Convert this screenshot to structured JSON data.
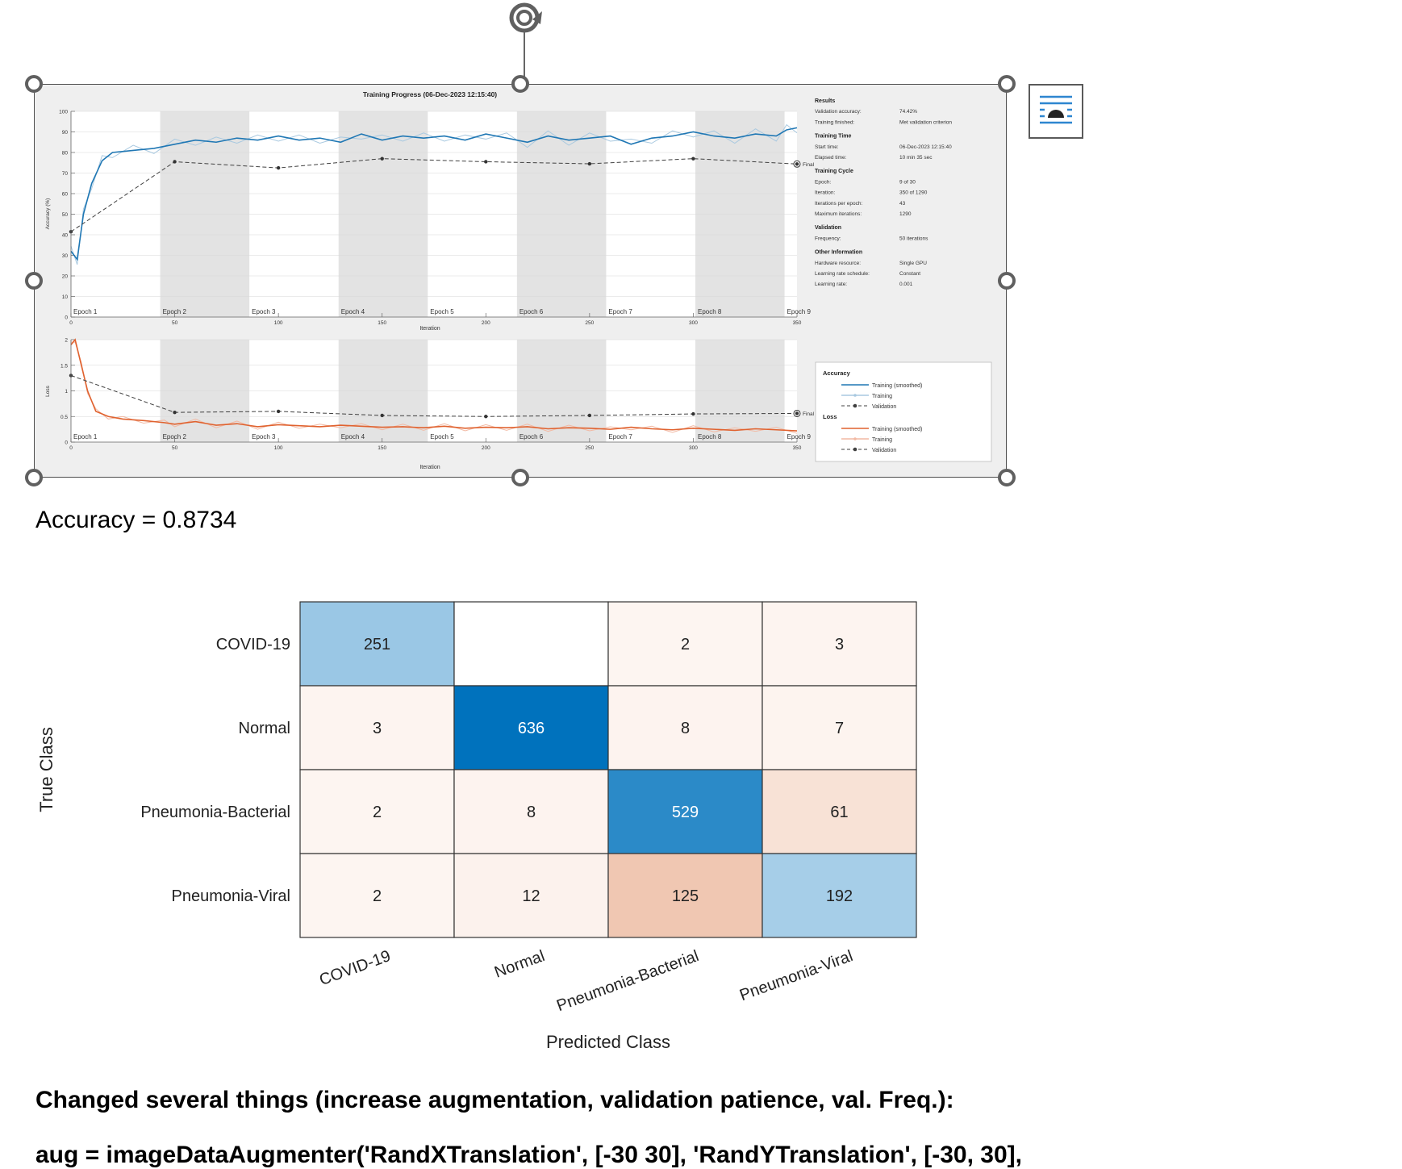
{
  "training_progress": {
    "title": "Training Progress (06-Dec-2023 12:15:40)",
    "accuracy_ylabel": "Accuracy (%)",
    "loss_ylabel": "Loss",
    "xlabel": "Iteration",
    "final_label": "Final",
    "epochs": [
      "Epoch 1",
      "Epoch 2",
      "Epoch 3",
      "Epoch 4",
      "Epoch 5",
      "Epoch 6",
      "Epoch 7",
      "Epoch 8",
      "Epoch 9"
    ],
    "accuracy_yticks": [
      "0",
      "10",
      "20",
      "30",
      "40",
      "50",
      "60",
      "70",
      "80",
      "90",
      "100"
    ],
    "loss_yticks": [
      "0",
      "0.5",
      "1",
      "1.5",
      "2"
    ],
    "xticks": [
      "0",
      "50",
      "100",
      "150",
      "200",
      "250",
      "300",
      "350"
    ],
    "results_panel": [
      {
        "kind": "header",
        "label": "Results"
      },
      {
        "kind": "row",
        "label": "Validation accuracy:",
        "value": "74.42%"
      },
      {
        "kind": "row",
        "label": "Training finished:",
        "value": "Met validation criterion"
      },
      {
        "kind": "header",
        "label": "Training Time"
      },
      {
        "kind": "row",
        "label": "Start time:",
        "value": "06-Dec-2023 12:15:40"
      },
      {
        "kind": "row",
        "label": "Elapsed time:",
        "value": "10 min 35 sec"
      },
      {
        "kind": "header",
        "label": "Training Cycle"
      },
      {
        "kind": "row",
        "label": "Epoch:",
        "value": "9 of 30"
      },
      {
        "kind": "row",
        "label": "Iteration:",
        "value": "350 of 1290"
      },
      {
        "kind": "row",
        "label": "Iterations per epoch:",
        "value": "43"
      },
      {
        "kind": "row",
        "label": "Maximum iterations:",
        "value": "1290"
      },
      {
        "kind": "header",
        "label": "Validation"
      },
      {
        "kind": "row",
        "label": "Frequency:",
        "value": "50 iterations"
      },
      {
        "kind": "header",
        "label": "Other Information"
      },
      {
        "kind": "row",
        "label": "Hardware resource:",
        "value": "Single GPU"
      },
      {
        "kind": "row",
        "label": "Learning rate schedule:",
        "value": "Constant"
      },
      {
        "kind": "row",
        "label": "Learning rate:",
        "value": "0.001"
      }
    ],
    "legend": {
      "accuracy_header": "Accuracy",
      "loss_header": "Loss",
      "smoothed": "Training (smoothed)",
      "training": "Training",
      "validation": "Validation"
    },
    "colors": {
      "accuracy": "#1f77b4",
      "accuracy_raw": "#a9c9e0",
      "loss": "#e0622f",
      "loss_raw": "#f2b9a3",
      "validation": "#404040"
    }
  },
  "chart_data": [
    {
      "type": "line",
      "title": "Training Progress (06-Dec-2023 12:15:40)",
      "xlabel": "Iteration",
      "ylabel": "Accuracy (%)",
      "xlim": [
        0,
        350
      ],
      "ylim": [
        0,
        100
      ],
      "series": [
        {
          "name": "Training (smoothed)",
          "x": [
            0,
            3,
            6,
            10,
            15,
            20,
            30,
            40,
            50,
            60,
            70,
            80,
            90,
            100,
            110,
            120,
            130,
            140,
            150,
            160,
            170,
            180,
            190,
            200,
            210,
            220,
            230,
            240,
            250,
            260,
            270,
            280,
            290,
            300,
            310,
            320,
            330,
            340,
            345,
            350
          ],
          "y": [
            32,
            28,
            50,
            65,
            76,
            80,
            81,
            82,
            84,
            86,
            85,
            87,
            86,
            88,
            86,
            87,
            85,
            89,
            86,
            88,
            87,
            88,
            86,
            89,
            87,
            85,
            88,
            86,
            87,
            88,
            84,
            87,
            88,
            90,
            88,
            87,
            89,
            88,
            91,
            92
          ]
        },
        {
          "name": "Validation",
          "x": [
            0,
            50,
            100,
            150,
            200,
            250,
            300,
            350
          ],
          "y": [
            41.5,
            75.5,
            72.5,
            77,
            75.5,
            74.5,
            77,
            74.4
          ]
        }
      ]
    },
    {
      "type": "line",
      "xlabel": "Iteration",
      "ylabel": "Loss",
      "xlim": [
        0,
        350
      ],
      "ylim": [
        0,
        2
      ],
      "series": [
        {
          "name": "Training (smoothed)",
          "x": [
            0,
            2,
            5,
            8,
            12,
            18,
            25,
            35,
            45,
            50,
            60,
            70,
            80,
            90,
            100,
            110,
            120,
            130,
            140,
            150,
            160,
            170,
            180,
            190,
            200,
            210,
            220,
            230,
            240,
            250,
            260,
            270,
            280,
            290,
            300,
            310,
            320,
            330,
            340,
            350
          ],
          "y": [
            1.9,
            2.0,
            1.5,
            1.0,
            0.6,
            0.5,
            0.45,
            0.42,
            0.38,
            0.35,
            0.4,
            0.33,
            0.36,
            0.3,
            0.34,
            0.32,
            0.3,
            0.33,
            0.31,
            0.29,
            0.3,
            0.28,
            0.31,
            0.27,
            0.29,
            0.28,
            0.3,
            0.26,
            0.28,
            0.27,
            0.25,
            0.29,
            0.26,
            0.24,
            0.27,
            0.25,
            0.23,
            0.26,
            0.24,
            0.22
          ]
        },
        {
          "name": "Validation",
          "x": [
            0,
            50,
            100,
            150,
            200,
            250,
            300,
            350
          ],
          "y": [
            1.3,
            0.58,
            0.6,
            0.52,
            0.5,
            0.52,
            0.55,
            0.56
          ]
        }
      ]
    },
    {
      "type": "heatmap",
      "xlabel": "Predicted Class",
      "ylabel": "True Class",
      "categories": [
        "COVID-19",
        "Normal",
        "Pneumonia-Bacterial",
        "Pneumonia-Viral"
      ],
      "matrix": [
        [
          251,
          null,
          2,
          3
        ],
        [
          3,
          636,
          8,
          7
        ],
        [
          2,
          8,
          529,
          61
        ],
        [
          2,
          12,
          125,
          192
        ]
      ]
    }
  ],
  "document": {
    "accuracy_text": "Accuracy = 0.8734",
    "heading": "Changed several things (increase augmentation, validation patience, val. Freq.):",
    "code_line": "aug = imageDataAugmenter('RandXTranslation', [-30 30], 'RandYTranslation', [-30, 30],"
  },
  "icons": {
    "rotate": "rotate-handle-icon",
    "layout": "layout-options-icon"
  }
}
